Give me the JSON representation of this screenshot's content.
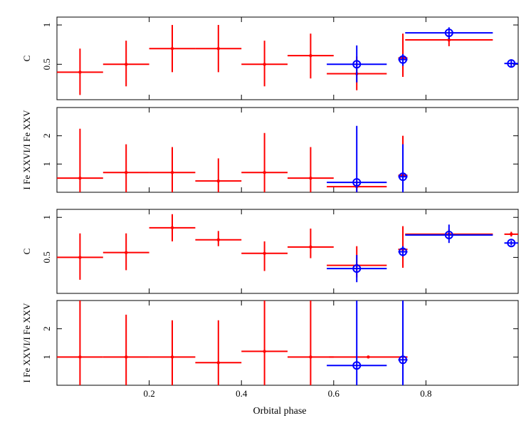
{
  "chart_data": {
    "type": "scatter",
    "title": "",
    "xlabel": "Orbital phase",
    "xlim": [
      0,
      1
    ],
    "xticks": [
      "0.2",
      "0.4",
      "0.6",
      "0.8"
    ],
    "xtick_values": [
      0.2,
      0.4,
      0.6,
      0.8
    ],
    "colors": {
      "red": "#ff0000",
      "blue": "#0000ff"
    },
    "panels": [
      {
        "ylabel": "C",
        "ylim": [
          0.05,
          1.1
        ],
        "yticks": [
          "0.5",
          "1"
        ],
        "ytick_values": [
          0.5,
          1
        ],
        "series": [
          {
            "name": "red",
            "marker": "dot",
            "points": [
              {
                "x": 0.05,
                "xerr": 0.05,
                "y": 0.4,
                "ylo": 0.11,
                "yhi": 0.7
              },
              {
                "x": 0.15,
                "xerr": 0.05,
                "y": 0.5,
                "ylo": 0.22,
                "yhi": 0.8
              },
              {
                "x": 0.25,
                "xerr": 0.05,
                "y": 0.7,
                "ylo": 0.4,
                "yhi": 1.0
              },
              {
                "x": 0.35,
                "xerr": 0.05,
                "y": 0.7,
                "ylo": 0.4,
                "yhi": 1.0
              },
              {
                "x": 0.45,
                "xerr": 0.05,
                "y": 0.5,
                "ylo": 0.22,
                "yhi": 0.8
              },
              {
                "x": 0.55,
                "xerr": 0.05,
                "y": 0.61,
                "ylo": 0.32,
                "yhi": 0.89
              },
              {
                "x": 0.65,
                "xerr": 0.065,
                "y": 0.38,
                "ylo": 0.17,
                "yhi": 0.6
              },
              {
                "x": 0.75,
                "xerr": 0.01,
                "y": 0.58,
                "ylo": 0.34,
                "yhi": 0.89
              },
              {
                "x": 0.85,
                "xerr": 0.095,
                "y": 0.81,
                "ylo": 0.73,
                "yhi": 0.88
              }
            ]
          },
          {
            "name": "blue",
            "marker": "circle",
            "points": [
              {
                "x": 0.65,
                "xerr": 0.065,
                "y": 0.5,
                "ylo": 0.27,
                "yhi": 0.74
              },
              {
                "x": 0.75,
                "xerr": 0.01,
                "y": 0.56,
                "ylo": 0.48,
                "yhi": 0.63
              },
              {
                "x": 0.85,
                "xerr": 0.095,
                "y": 0.9,
                "ylo": 0.82,
                "yhi": 0.97
              },
              {
                "x": 0.985,
                "xerr": 0.015,
                "y": 0.51,
                "ylo": 0.46,
                "yhi": 0.56
              }
            ]
          }
        ]
      },
      {
        "ylabel": "I Fe XXVI/I Fe XXV",
        "ylim": [
          0,
          3.0
        ],
        "yticks": [
          "1",
          "2"
        ],
        "ytick_values": [
          1,
          2
        ],
        "series": [
          {
            "name": "red",
            "marker": "dot",
            "points": [
              {
                "x": 0.05,
                "xerr": 0.05,
                "y": 0.5,
                "ylo": 0.0,
                "yhi": 2.25
              },
              {
                "x": 0.15,
                "xerr": 0.05,
                "y": 0.7,
                "ylo": 0.0,
                "yhi": 1.7
              },
              {
                "x": 0.25,
                "xerr": 0.05,
                "y": 0.7,
                "ylo": 0.0,
                "yhi": 1.6
              },
              {
                "x": 0.35,
                "xerr": 0.05,
                "y": 0.4,
                "ylo": 0.0,
                "yhi": 1.2
              },
              {
                "x": 0.45,
                "xerr": 0.05,
                "y": 0.7,
                "ylo": 0.0,
                "yhi": 2.1
              },
              {
                "x": 0.55,
                "xerr": 0.05,
                "y": 0.5,
                "ylo": 0.0,
                "yhi": 1.6
              },
              {
                "x": 0.65,
                "xerr": 0.065,
                "y": 0.2,
                "ylo": 0.0,
                "yhi": 0.4
              },
              {
                "x": 0.75,
                "xerr": 0.01,
                "y": 0.6,
                "ylo": 0.0,
                "yhi": 2.0
              }
            ]
          },
          {
            "name": "blue",
            "marker": "circle",
            "points": [
              {
                "x": 0.65,
                "xerr": 0.065,
                "y": 0.35,
                "ylo": 0.0,
                "yhi": 2.35
              },
              {
                "x": 0.75,
                "xerr": 0.01,
                "y": 0.55,
                "ylo": 0.0,
                "yhi": 1.7
              }
            ]
          }
        ]
      },
      {
        "ylabel": "C",
        "ylim": [
          0.05,
          1.1
        ],
        "yticks": [
          "0.5",
          "1"
        ],
        "ytick_values": [
          0.5,
          1
        ],
        "series": [
          {
            "name": "red",
            "marker": "dot",
            "points": [
              {
                "x": 0.05,
                "xerr": 0.05,
                "y": 0.5,
                "ylo": 0.22,
                "yhi": 0.8
              },
              {
                "x": 0.15,
                "xerr": 0.05,
                "y": 0.56,
                "ylo": 0.34,
                "yhi": 0.8
              },
              {
                "x": 0.25,
                "xerr": 0.05,
                "y": 0.87,
                "ylo": 0.7,
                "yhi": 1.04
              },
              {
                "x": 0.35,
                "xerr": 0.05,
                "y": 0.72,
                "ylo": 0.64,
                "yhi": 0.83
              },
              {
                "x": 0.45,
                "xerr": 0.05,
                "y": 0.55,
                "ylo": 0.33,
                "yhi": 0.7
              },
              {
                "x": 0.55,
                "xerr": 0.05,
                "y": 0.63,
                "ylo": 0.49,
                "yhi": 0.86
              },
              {
                "x": 0.65,
                "xerr": 0.065,
                "y": 0.4,
                "ylo": 0.25,
                "yhi": 0.64
              },
              {
                "x": 0.75,
                "xerr": 0.01,
                "y": 0.6,
                "ylo": 0.37,
                "yhi": 0.89
              },
              {
                "x": 0.85,
                "xerr": 0.095,
                "y": 0.79,
                "ylo": 0.74,
                "yhi": 0.85
              },
              {
                "x": 0.985,
                "xerr": 0.015,
                "y": 0.79,
                "ylo": 0.76,
                "yhi": 0.82
              }
            ]
          },
          {
            "name": "blue",
            "marker": "circle",
            "points": [
              {
                "x": 0.65,
                "xerr": 0.065,
                "y": 0.36,
                "ylo": 0.19,
                "yhi": 0.53
              },
              {
                "x": 0.75,
                "xerr": 0.01,
                "y": 0.57,
                "ylo": 0.51,
                "yhi": 0.64
              },
              {
                "x": 0.85,
                "xerr": 0.095,
                "y": 0.78,
                "ylo": 0.68,
                "yhi": 0.91
              },
              {
                "x": 0.985,
                "xerr": 0.015,
                "y": 0.68,
                "ylo": 0.65,
                "yhi": 0.71
              }
            ]
          }
        ]
      },
      {
        "ylabel": "I Fe XXVI/I Fe XXV",
        "ylim": [
          0,
          3.0
        ],
        "yticks": [
          "1",
          "2"
        ],
        "ytick_values": [
          1,
          2
        ],
        "series": [
          {
            "name": "red",
            "marker": "dot",
            "points": [
              {
                "x": 0.05,
                "xerr": 0.05,
                "y": 1.0,
                "ylo": 0.0,
                "yhi": 3.0
              },
              {
                "x": 0.15,
                "xerr": 0.05,
                "y": 1.0,
                "ylo": 0.0,
                "yhi": 2.5
              },
              {
                "x": 0.25,
                "xerr": 0.05,
                "y": 1.0,
                "ylo": 0.0,
                "yhi": 2.3
              },
              {
                "x": 0.35,
                "xerr": 0.05,
                "y": 0.8,
                "ylo": 0.0,
                "yhi": 2.3
              },
              {
                "x": 0.45,
                "xerr": 0.05,
                "y": 1.2,
                "ylo": 0.0,
                "yhi": 3.0
              },
              {
                "x": 0.55,
                "xerr": 0.05,
                "y": 1.0,
                "ylo": 0.0,
                "yhi": 3.0
              },
              {
                "x": 0.675,
                "xerr": 0.085,
                "y": 1.0,
                "ylo": 1.0,
                "yhi": 1.0
              }
            ]
          },
          {
            "name": "blue",
            "marker": "circle",
            "points": [
              {
                "x": 0.65,
                "xerr": 0.065,
                "y": 0.7,
                "ylo": 0.0,
                "yhi": 3.0
              },
              {
                "x": 0.75,
                "xerr": 0.01,
                "y": 0.9,
                "ylo": 0.0,
                "yhi": 3.0
              }
            ]
          }
        ]
      }
    ]
  }
}
